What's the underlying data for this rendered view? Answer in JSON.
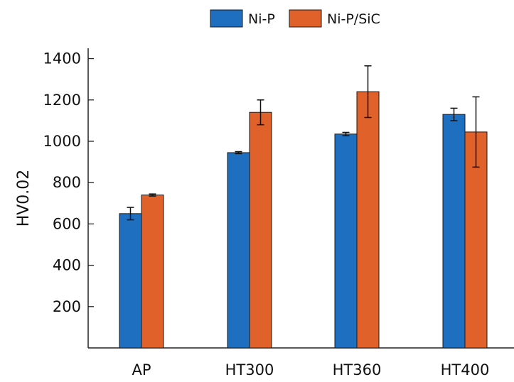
{
  "chart_data": {
    "type": "bar",
    "title": "",
    "xlabel": "",
    "ylabel": "HV0.02",
    "ylim": [
      0,
      1450
    ],
    "yticks": [
      200,
      400,
      600,
      800,
      1000,
      1200,
      1400
    ],
    "categories": [
      "AP",
      "HT300",
      "HT360",
      "HT400"
    ],
    "series": [
      {
        "name": "Ni-P",
        "color": "#1f6fc0",
        "values": [
          650,
          945,
          1035,
          1130
        ],
        "errors": [
          30,
          5,
          8,
          30
        ]
      },
      {
        "name": "Ni-P/SiC",
        "color": "#e0612a",
        "values": [
          740,
          1140,
          1240,
          1045
        ],
        "errors": [
          5,
          60,
          125,
          170
        ]
      }
    ],
    "legend": "top-center",
    "grid": false
  }
}
